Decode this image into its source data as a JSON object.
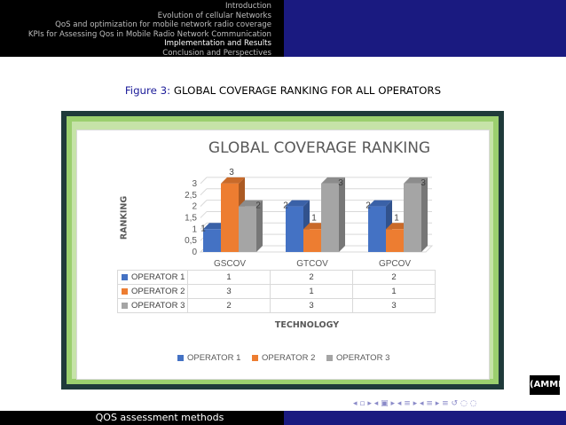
{
  "nav": {
    "items": [
      "Introduction",
      "Evolution of cellular Networks",
      "QoS and optimization for mobile network radio coverage",
      "KPIs for Assessing Qos in Mobile Radio Network Communication",
      "Implementation and Results",
      "Conclusion and Perspectives"
    ],
    "active_index": 4
  },
  "caption": {
    "prefix": "Figure 3:",
    "text": "GLOBAL COVERAGE RANKING FOR ALL OPERATORS"
  },
  "chart_data": {
    "type": "bar",
    "title": "GLOBAL COVERAGE RANKING",
    "xlabel": "TECHNOLOGY",
    "ylabel": "RANKING",
    "categories": [
      "GSCOV",
      "GTCOV",
      "GPCOV"
    ],
    "series": [
      {
        "name": "OPERATOR 1",
        "values": [
          1,
          2,
          2
        ],
        "color": "#4472c4"
      },
      {
        "name": "OPERATOR 2",
        "values": [
          3,
          1,
          1
        ],
        "color": "#ed7d31"
      },
      {
        "name": "OPERATOR 3",
        "values": [
          2,
          3,
          3
        ],
        "color": "#a5a5a5"
      }
    ],
    "yticks": [
      "0",
      "0,5",
      "1",
      "1,5",
      "2",
      "2,5",
      "3"
    ],
    "ylim": [
      0,
      3
    ],
    "style": "3d-clustered",
    "data_table": true,
    "legend_position": "bottom"
  },
  "logo": {
    "text": "(AMMI)"
  },
  "nav_icons": "◂ ▫ ▸ ◂ ▣ ▸ ◂ ≡ ▸ ◂ ≡ ▸ ≡ ↺ ◌ ◌",
  "footer": {
    "text": "QOS assessment methods"
  }
}
